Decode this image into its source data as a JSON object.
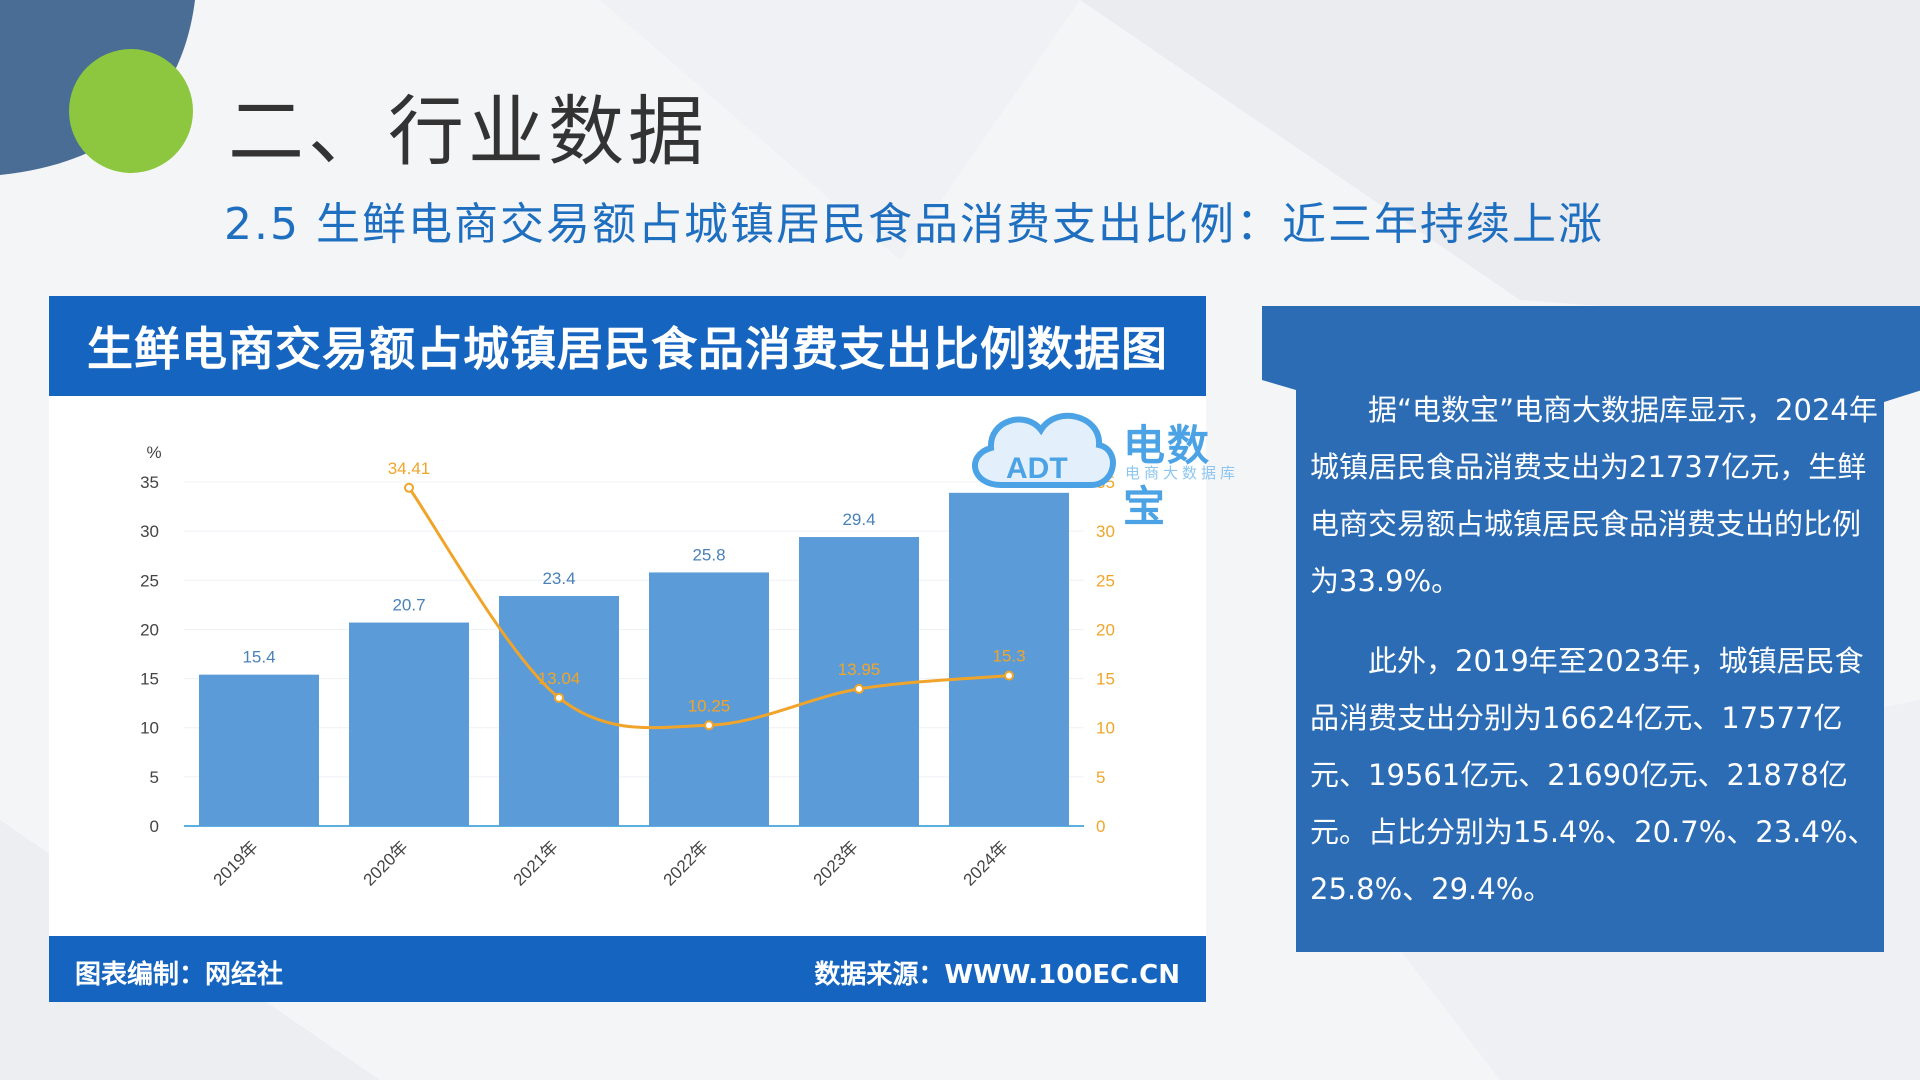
{
  "slide": {
    "title": "二、行业数据",
    "subtitle": "2.5 生鲜电商交易额占城镇居民食品消费支出比例：近三年持续上涨"
  },
  "chart_card": {
    "header": "生鲜电商交易额占城镇居民食品消费支出比例数据图",
    "footer_left": "图表编制：网经社",
    "footer_right": "数据来源：WWW.100EC.CN",
    "logo_text": "电数宝",
    "logo_sub": "电商大数据库",
    "logo_mark": "ADT"
  },
  "chart_data": {
    "type": "bar",
    "categories": [
      "2019年",
      "2020年",
      "2021年",
      "2022年",
      "2023年",
      "2024年"
    ],
    "series": [
      {
        "type": "bar",
        "values": [
          15.4,
          20.7,
          23.4,
          25.8,
          29.4,
          33.9
        ],
        "axis": "left"
      },
      {
        "type": "line",
        "values": [
          null,
          34.41,
          13.04,
          10.25,
          13.95,
          15.3
        ],
        "axis": "right"
      }
    ],
    "ylabel_left": "%",
    "ylabel_right": "%",
    "ylim": [
      0,
      35
    ],
    "yticks": [
      0,
      5,
      10,
      15,
      20,
      25,
      30,
      35
    ],
    "grid": true,
    "colors": {
      "bar": "#5b9bd8",
      "line": "#f0a52a",
      "bar_label": "#4a82b8",
      "line_label": "#f0a52a",
      "axis_text": "#444444",
      "right_axis_text": "#f0a52a"
    }
  },
  "text_panel": {
    "paragraphs": [
      "据“电数宝”电商大数据库显示，2024年城镇居民食品消费支出为21737亿元，生鲜电商交易额占城镇居民食品消费支出的比例为33.9%。",
      "此外，2019年至2023年，城镇居民食品消费支出分别为16624亿元、17577亿元、19561亿元、21690亿元、21878亿元。占比分别为15.4%、20.7%、23.4%、25.8%、29.4%。"
    ]
  },
  "theme": {
    "accent_blue": "#1565c0",
    "panel_blue": "#2b6cb5",
    "green": "#8dc63f",
    "dark_blue": "#4a6d95"
  }
}
